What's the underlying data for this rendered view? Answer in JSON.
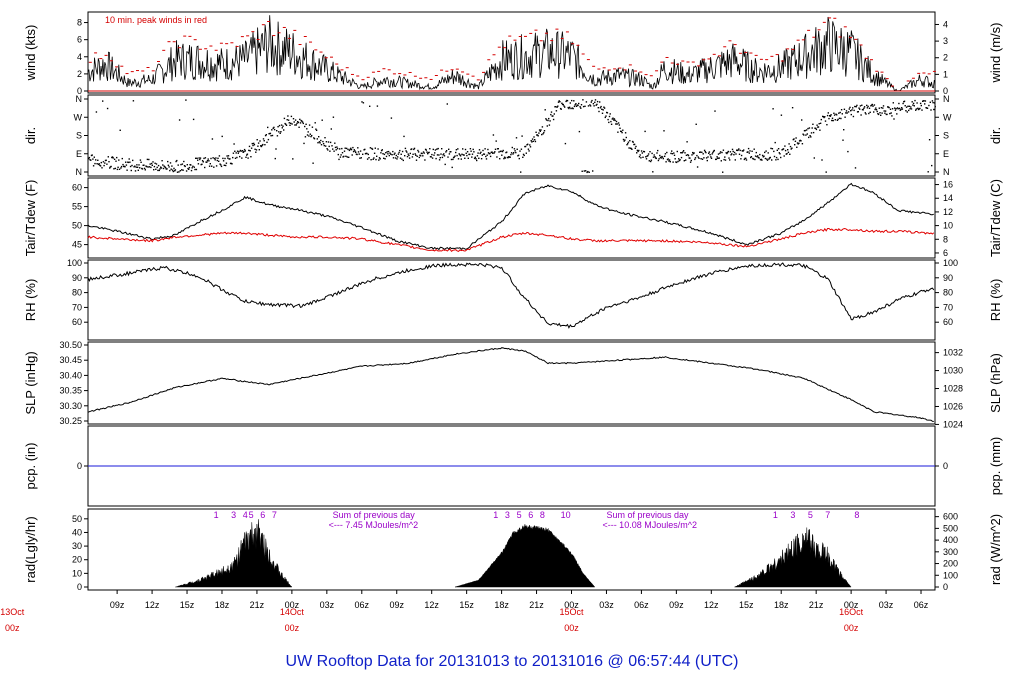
{
  "title": "UW Rooftop Data for 20131013  to  20131016 @ 06:57:44  (UTC)",
  "x_axis": {
    "hour_ticks": [
      "09z",
      "12z",
      "15z",
      "18z",
      "21z",
      "00z",
      "03z",
      "06z",
      "09z",
      "12z",
      "15z",
      "18z",
      "21z",
      "00z",
      "03z",
      "06z",
      "09z",
      "12z",
      "15z",
      "18z",
      "21z",
      "00z",
      "03z",
      "06z"
    ],
    "day_labels": [
      {
        "date": "13Oct",
        "hour": "00z"
      },
      {
        "date": "14Oct",
        "hour": "00z"
      },
      {
        "date": "15Oct",
        "hour": "00z"
      },
      {
        "date": "16Oct",
        "hour": "00z"
      }
    ]
  },
  "colors": {
    "wind_peak": "#d40000",
    "tdew": "#e00000",
    "pcp": "#1a1ad8",
    "annot": "#9a00c8",
    "title": "#1020c8"
  },
  "chart_data": [
    {
      "type": "line",
      "name": "wind",
      "ylabel": "wind (kts)",
      "ylabel_right": "wind (m/s)",
      "ylim": [
        0,
        9
      ],
      "yticks": [
        0,
        2,
        4,
        6,
        8
      ],
      "yticks_right": [
        0,
        1,
        2,
        3,
        4
      ],
      "annotation": "10 min. peak winds in red",
      "x": [
        6.5,
        8,
        10,
        12,
        14,
        16,
        18,
        20,
        22,
        24,
        26,
        28,
        30,
        32,
        34,
        36,
        38,
        40,
        42,
        44,
        46,
        48,
        50,
        52,
        54,
        55,
        56,
        58,
        60,
        62,
        64,
        66,
        70,
        72,
        74,
        76,
        78,
        79
      ],
      "series": [
        {
          "values": [
            2.5,
            3.5,
            1,
            1.5,
            4,
            4,
            3.5,
            4,
            6,
            5,
            3.5,
            2,
            0.5,
            1.5,
            1,
            0.5,
            2,
            0.5,
            4,
            4.5,
            5,
            4.5,
            1.5,
            2,
            1.5,
            0.5,
            3,
            2,
            3,
            4,
            2.5,
            3,
            6,
            5,
            2,
            0,
            1.5,
            1
          ]
        },
        {
          "values": [
            3.5,
            4.5,
            2,
            2.5,
            6,
            5.5,
            5,
            6,
            7.5,
            6.5,
            5,
            3,
            1.5,
            2.5,
            2,
            1.5,
            3,
            1.5,
            5.5,
            6,
            6.5,
            6,
            2.5,
            3,
            2.5,
            1.5,
            4,
            3,
            4,
            5.5,
            3.5,
            4,
            8,
            6.5,
            3,
            0,
            2.5,
            2
          ]
        }
      ]
    },
    {
      "type": "scatter",
      "name": "direction",
      "ylabel": "dir.",
      "ylabel_right": "dir.",
      "yticks": [
        "N",
        "E",
        "S",
        "W",
        "N"
      ],
      "x": [
        6.5,
        10,
        14,
        18,
        20,
        24,
        28,
        32,
        36,
        40,
        44,
        47,
        50,
        54,
        58,
        62,
        66,
        70,
        72,
        74,
        76,
        78,
        79
      ],
      "series": [
        {
          "values": [
            60,
            40,
            30,
            60,
            90,
            270,
            100,
            90,
            90,
            90,
            100,
            340,
            350,
            80,
            80,
            90,
            90,
            270,
            300,
            310,
            320,
            330,
            340
          ]
        }
      ]
    },
    {
      "type": "line",
      "name": "tair_tdew",
      "ylabel": "Tair/Tdew (F)",
      "ylabel_right": "Tair/Tdew (C)",
      "ylim": [
        42,
        62
      ],
      "yticks": [
        45,
        50,
        55,
        60
      ],
      "yticks_right": [
        6,
        8,
        10,
        12,
        14,
        16
      ],
      "x": [
        6.5,
        9,
        12,
        14,
        16,
        18,
        20,
        22,
        24,
        27,
        30,
        33,
        36,
        39,
        42,
        44,
        46,
        48,
        50,
        52,
        56,
        60,
        63,
        66,
        68,
        70,
        72,
        74,
        76,
        79
      ],
      "series": [
        {
          "name": "Tair",
          "values": [
            50,
            48.5,
            46.5,
            47.5,
            51,
            54,
            57.5,
            55.5,
            54.5,
            52.5,
            49.5,
            46,
            44,
            44,
            51,
            58.5,
            60.5,
            59,
            55.5,
            53.5,
            51,
            48,
            45,
            48,
            51.5,
            56,
            61,
            58.5,
            54,
            53
          ]
        },
        {
          "name": "Tdew",
          "values": [
            47,
            46.5,
            46,
            47,
            47.5,
            48,
            48,
            47.5,
            47,
            47,
            46.5,
            45,
            43.5,
            43.5,
            47,
            48,
            47.5,
            46.5,
            46,
            46,
            46,
            45.5,
            44.5,
            46.5,
            48,
            49,
            49,
            48.5,
            48.5,
            48
          ]
        }
      ]
    },
    {
      "type": "line",
      "name": "rh",
      "ylabel": "RH (%)",
      "ylabel_right": "RH (%)",
      "ylim": [
        50,
        100
      ],
      "yticks": [
        60,
        70,
        80,
        90,
        100
      ],
      "yticks_right": [
        60,
        70,
        80,
        90,
        100
      ],
      "x": [
        6.5,
        10,
        13,
        16,
        18,
        20,
        22,
        25,
        28,
        31,
        34,
        36,
        38,
        40,
        42,
        44,
        46,
        48,
        51,
        54,
        57,
        60,
        63,
        66,
        68,
        70,
        72,
        74,
        76,
        79
      ],
      "series": [
        {
          "values": [
            89,
            93,
            97,
            91,
            82,
            74,
            72,
            71,
            80,
            89,
            95,
            98,
            99,
            99,
            97,
            76,
            59,
            57,
            70,
            77,
            86,
            93,
            98,
            99,
            98,
            89,
            62,
            67,
            75,
            83
          ]
        }
      ]
    },
    {
      "type": "line",
      "name": "slp",
      "ylabel": "SLP (inHg)",
      "ylabel_right": "SLP (hPa)",
      "ylim": [
        30.25,
        30.5
      ],
      "yticks": [
        30.25,
        30.3,
        30.35,
        30.4,
        30.45,
        30.5
      ],
      "yticks_right": [
        1024,
        1026,
        1028,
        1030,
        1032
      ],
      "x": [
        6.5,
        10,
        14,
        18,
        22,
        26,
        30,
        34,
        38,
        42,
        44,
        46,
        48,
        52,
        56,
        60,
        64,
        68,
        72,
        74,
        76,
        78,
        79
      ],
      "series": [
        {
          "values": [
            30.28,
            30.31,
            30.36,
            30.39,
            30.37,
            30.4,
            30.43,
            30.44,
            30.47,
            30.49,
            30.48,
            30.44,
            30.44,
            30.45,
            30.46,
            30.44,
            30.42,
            30.39,
            30.32,
            30.28,
            30.27,
            30.26,
            30.25
          ]
        }
      ]
    },
    {
      "type": "line",
      "name": "pcp",
      "ylabel": "pcp. (in)",
      "ylabel_right": "pcp. (mm)",
      "yticks": [
        0
      ],
      "yticks_right": [
        0
      ],
      "x": [
        6.5,
        79
      ],
      "series": [
        {
          "values": [
            0,
            0
          ]
        }
      ]
    },
    {
      "type": "area",
      "name": "radiation",
      "ylabel": "rad(Lgly/hr)",
      "ylabel_right": "rad (W/m^2)",
      "ylim": [
        0,
        55
      ],
      "yticks": [
        0,
        10,
        20,
        30,
        40,
        50
      ],
      "yticks_right": [
        0,
        100,
        200,
        300,
        400,
        500,
        600
      ],
      "x": [
        14,
        16,
        18,
        19,
        20,
        21,
        22,
        23,
        24,
        38,
        40,
        42,
        43,
        44,
        46,
        48,
        49,
        50,
        62,
        64,
        66,
        67,
        68,
        69,
        70,
        71,
        72
      ],
      "series": [
        {
          "values": [
            0,
            6,
            14,
            20,
            40,
            50,
            30,
            12,
            0,
            0,
            5,
            25,
            40,
            45,
            42,
            25,
            10,
            0,
            0,
            10,
            25,
            35,
            45,
            35,
            28,
            12,
            0
          ]
        }
      ],
      "hour_markers": [
        {
          "labels": [
            "1",
            "3",
            "4",
            "5",
            "6",
            "7"
          ],
          "x": [
            17.5,
            19,
            20,
            20.5,
            21.5,
            22.5
          ]
        },
        {
          "labels": [
            "1",
            "3",
            "5",
            "6",
            "8",
            "10"
          ],
          "x": [
            41.5,
            42.5,
            43.5,
            44.5,
            45.5,
            47.5
          ]
        },
        {
          "labels": [
            "1",
            "3",
            "5",
            "7",
            "8"
          ],
          "x": [
            65.5,
            67,
            68.5,
            70,
            72.5
          ]
        }
      ],
      "annotations": [
        {
          "line1": "Sum of previous day",
          "line2": "<--- 7.45 MJoules/m^2"
        },
        {
          "line1": "Sum of previous day",
          "line2": "<--- 10.08 MJoules/m^2"
        }
      ]
    }
  ]
}
